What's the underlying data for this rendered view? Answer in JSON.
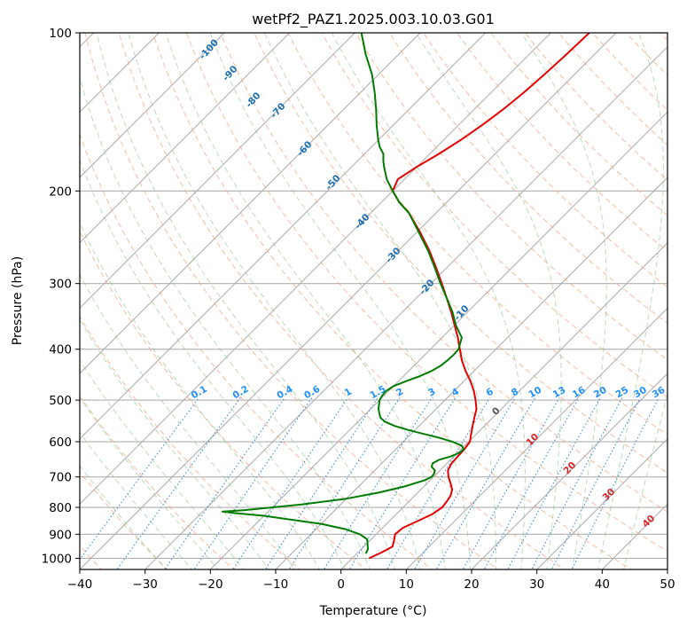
{
  "chart_data": {
    "type": "skew-t",
    "title": "wetPf2_PAZ1.2025.003.10.03.G01",
    "xlabel": "Temperature (°C)",
    "ylabel": "Pressure (hPa)",
    "xlim": [
      -40,
      50
    ],
    "ylim": [
      1050,
      100
    ],
    "x_ticks": [
      -40,
      -30,
      -20,
      -10,
      0,
      10,
      20,
      30,
      40,
      50
    ],
    "y_ticks": [
      1000,
      900,
      800,
      700,
      600,
      500,
      400,
      300,
      200,
      100
    ],
    "grid": true,
    "series": [
      {
        "name": "temperature",
        "color": "#e60000",
        "points": [
          [
            1000,
            2.6
          ],
          [
            975,
            3.6
          ],
          [
            950,
            4.4
          ],
          [
            925,
            3.7
          ],
          [
            900,
            2.9
          ],
          [
            875,
            3.1
          ],
          [
            850,
            4.3
          ],
          [
            825,
            5.5
          ],
          [
            800,
            6.0
          ],
          [
            780,
            5.8
          ],
          [
            760,
            5.5
          ],
          [
            740,
            4.8
          ],
          [
            720,
            3.6
          ],
          [
            700,
            2.3
          ],
          [
            680,
            1.2
          ],
          [
            660,
            0.7
          ],
          [
            640,
            0.6
          ],
          [
            620,
            0.5
          ],
          [
            600,
            0.2
          ],
          [
            580,
            -0.8
          ],
          [
            560,
            -1.8
          ],
          [
            540,
            -2.8
          ],
          [
            520,
            -3.8
          ],
          [
            500,
            -5.3
          ],
          [
            480,
            -7.0
          ],
          [
            460,
            -9.0
          ],
          [
            440,
            -11.3
          ],
          [
            420,
            -13.5
          ],
          [
            400,
            -15.5
          ],
          [
            380,
            -17.6
          ],
          [
            360,
            -20.0
          ],
          [
            340,
            -22.5
          ],
          [
            320,
            -25.3
          ],
          [
            300,
            -28.3
          ],
          [
            280,
            -31.6
          ],
          [
            260,
            -35.2
          ],
          [
            240,
            -39.4
          ],
          [
            220,
            -44.2
          ],
          [
            210,
            -47.3
          ],
          [
            200,
            -50.0
          ],
          [
            190,
            -51.0
          ],
          [
            180,
            -50.0
          ],
          [
            170,
            -48.6
          ],
          [
            160,
            -47.4
          ],
          [
            150,
            -46.4
          ],
          [
            140,
            -45.6
          ],
          [
            130,
            -45.0
          ],
          [
            120,
            -44.6
          ],
          [
            110,
            -44.3
          ],
          [
            100,
            -44.1
          ]
        ]
      },
      {
        "name": "dewpoint",
        "color": "#007c00",
        "points": [
          [
            980,
            1.4
          ],
          [
            960,
            1.0
          ],
          [
            940,
            0.2
          ],
          [
            920,
            -0.6
          ],
          [
            900,
            -2.5
          ],
          [
            880,
            -5.5
          ],
          [
            860,
            -10.0
          ],
          [
            845,
            -15.0
          ],
          [
            830,
            -20.0
          ],
          [
            820,
            -25.0
          ],
          [
            815,
            -27.0
          ],
          [
            810,
            -24.0
          ],
          [
            800,
            -20.0
          ],
          [
            790,
            -16.0
          ],
          [
            770,
            -10.0
          ],
          [
            750,
            -6.0
          ],
          [
            730,
            -3.0
          ],
          [
            710,
            -0.8
          ],
          [
            700,
            -0.3
          ],
          [
            690,
            -0.4
          ],
          [
            680,
            -0.8
          ],
          [
            670,
            -1.8
          ],
          [
            660,
            -2.2
          ],
          [
            650,
            -1.8
          ],
          [
            640,
            -0.5
          ],
          [
            630,
            0.3
          ],
          [
            620,
            0.4
          ],
          [
            610,
            -0.5
          ],
          [
            600,
            -2.5
          ],
          [
            590,
            -5.0
          ],
          [
            580,
            -8.0
          ],
          [
            570,
            -11.0
          ],
          [
            560,
            -13.7
          ],
          [
            550,
            -15.8
          ],
          [
            540,
            -17.2
          ],
          [
            530,
            -18.0
          ],
          [
            520,
            -18.8
          ],
          [
            510,
            -19.4
          ],
          [
            500,
            -20.0
          ],
          [
            490,
            -20.3
          ],
          [
            480,
            -20.4
          ],
          [
            470,
            -20.0
          ],
          [
            460,
            -18.8
          ],
          [
            450,
            -17.5
          ],
          [
            440,
            -16.5
          ],
          [
            430,
            -15.9
          ],
          [
            420,
            -15.7
          ],
          [
            410,
            -15.6
          ],
          [
            400,
            -15.7
          ],
          [
            380,
            -17.0
          ],
          [
            360,
            -19.8
          ],
          [
            340,
            -22.3
          ],
          [
            320,
            -25.3
          ],
          [
            300,
            -28.5
          ],
          [
            280,
            -31.8
          ],
          [
            260,
            -35.4
          ],
          [
            240,
            -39.6
          ],
          [
            220,
            -44.2
          ],
          [
            210,
            -47.3
          ],
          [
            200,
            -50.0
          ],
          [
            190,
            -52.7
          ],
          [
            180,
            -55.0
          ],
          [
            175,
            -56.1
          ],
          [
            170,
            -57.1
          ],
          [
            165,
            -58.7
          ],
          [
            160,
            -60.0
          ],
          [
            150,
            -62.5
          ],
          [
            140,
            -65.0
          ],
          [
            130,
            -67.8
          ],
          [
            120,
            -71.0
          ],
          [
            110,
            -75.0
          ],
          [
            100,
            -79.0
          ]
        ]
      }
    ],
    "background_lines": {
      "dry_adiabats_labels": [
        "-100",
        "-90",
        "-80",
        "-70",
        "-60",
        "-50",
        "-40",
        "-30",
        "-20",
        "-10"
      ],
      "mixing_ratio_labels": [
        "0.1",
        "0.2",
        "0.4",
        "0.6",
        "1",
        "1.5",
        "2",
        "3",
        "4",
        "6",
        "8",
        "10",
        "13",
        "16",
        "20",
        "25",
        "30",
        "36"
      ],
      "moist_adiabat_labels": [
        "0",
        "10",
        "20",
        "30",
        "40"
      ]
    }
  }
}
